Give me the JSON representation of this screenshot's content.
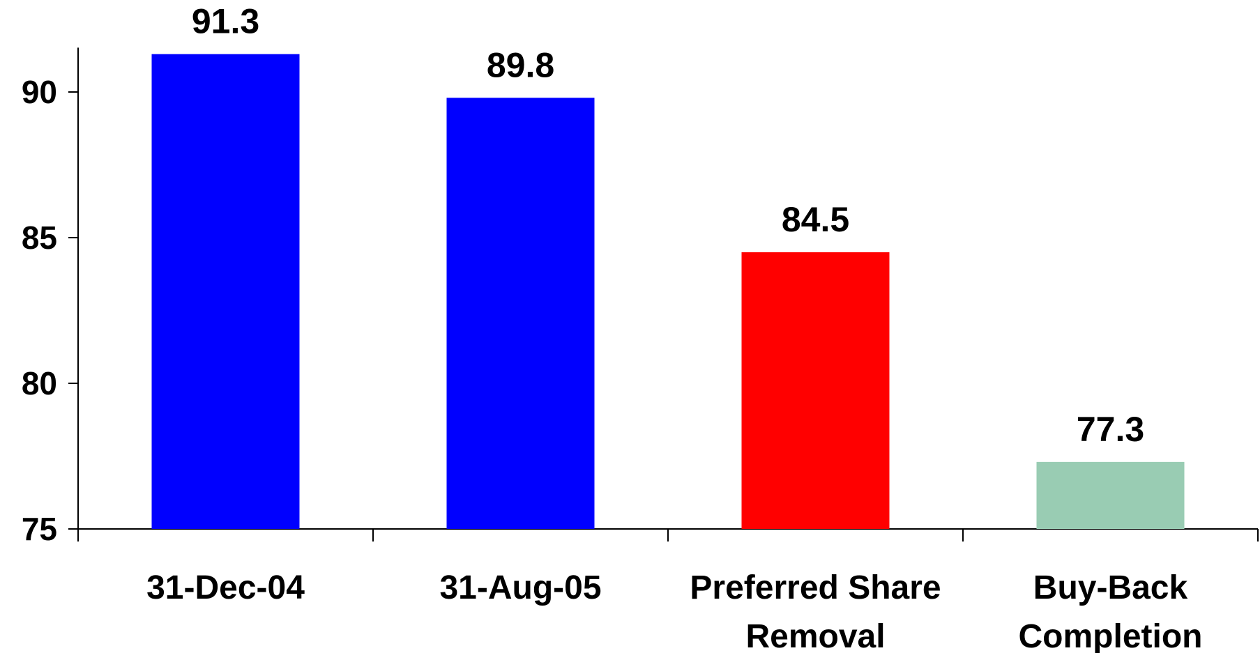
{
  "chart_data": {
    "type": "bar",
    "categories": [
      [
        "31-Dec-04"
      ],
      [
        "31-Aug-05"
      ],
      [
        "Preferred Share",
        "Removal"
      ],
      [
        "Buy-Back",
        "Completion"
      ]
    ],
    "values": [
      91.3,
      89.8,
      84.5,
      77.3
    ],
    "value_labels": [
      "91.3",
      "89.8",
      "84.5",
      "77.3"
    ],
    "bar_colors": [
      "#0000ff",
      "#0000ff",
      "#ff0000",
      "#99ccb3"
    ],
    "ylim": [
      75,
      92
    ],
    "yticks": [
      75,
      80,
      85,
      90
    ],
    "ytick_labels": [
      "75",
      "80",
      "85",
      "90"
    ],
    "title": "",
    "xlabel": "",
    "ylabel": "",
    "grid": false,
    "legend": "none"
  }
}
